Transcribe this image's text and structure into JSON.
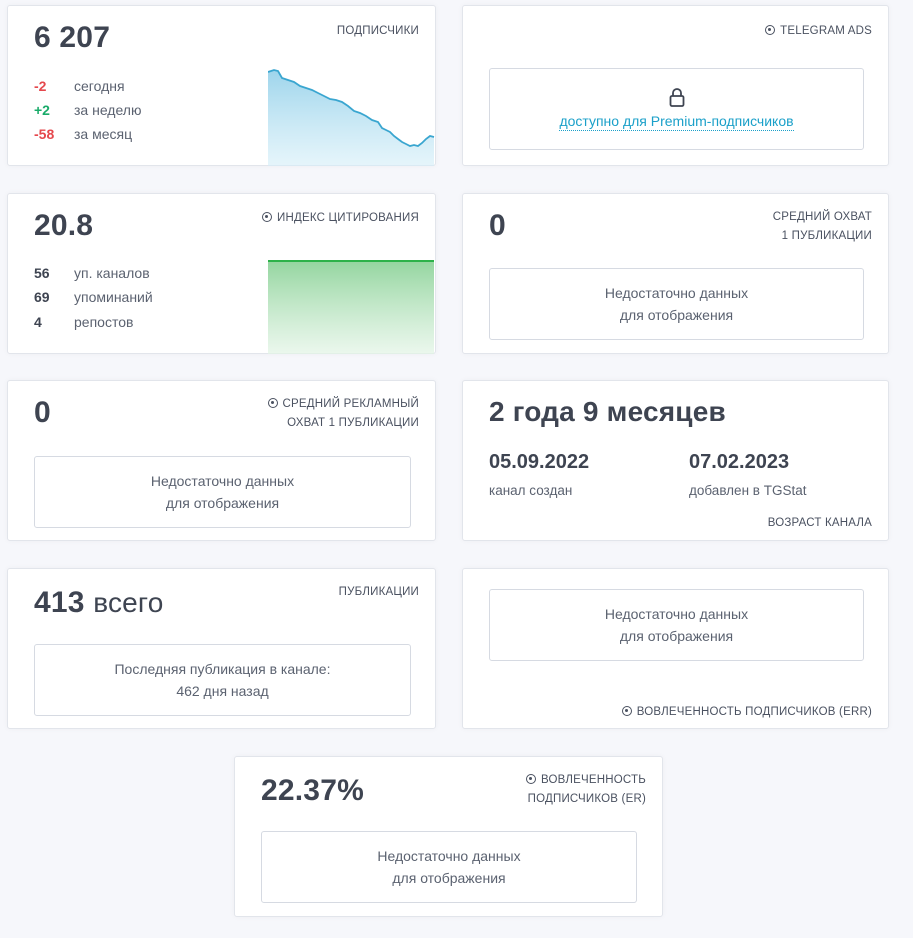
{
  "subscribers": {
    "value": "6 207",
    "title": "ПОДПИСЧИКИ",
    "rows": [
      {
        "num": "-2",
        "label": "сегодня"
      },
      {
        "num": "+2",
        "label": "за неделю"
      },
      {
        "num": "-58",
        "label": "за месяц"
      }
    ]
  },
  "telegram_ads": {
    "title": "TELEGRAM ADS",
    "link": "доступно для Premium-подписчиков"
  },
  "citation": {
    "value": "20.8",
    "title": "ИНДЕКС ЦИТИРОВАНИЯ",
    "rows": [
      {
        "num": "56",
        "label": "уп. каналов"
      },
      {
        "num": "69",
        "label": "упоминаний"
      },
      {
        "num": "4",
        "label": "репостов"
      }
    ]
  },
  "avg_reach": {
    "value": "0",
    "title_line1": "СРЕДНИЙ ОХВАТ",
    "title_line2": "1 ПУБЛИКАЦИИ",
    "empty_line1": "Недостаточно данных",
    "empty_line2": "для отображения"
  },
  "avg_ad_reach": {
    "value": "0",
    "title_line1": "СРЕДНИЙ РЕКЛАМНЫЙ",
    "title_line2": "ОХВАТ 1 ПУБЛИКАЦИИ",
    "empty_line1": "Недостаточно данных",
    "empty_line2": "для отображения"
  },
  "channel_age": {
    "value": "2 года 9 месяцев",
    "created_date": "05.09.2022",
    "created_label": "канал создан",
    "added_date": "07.02.2023",
    "added_label": "добавлен в TGStat",
    "title": "ВОЗРАСТ КАНАЛА"
  },
  "publications": {
    "value": "413",
    "unit": "всего",
    "title": "ПУБЛИКАЦИИ",
    "last_line1": "Последняя публикация в канале:",
    "last_line2": "462 дня назад"
  },
  "err": {
    "empty_line1": "Недостаточно данных",
    "empty_line2": "для отображения",
    "title": "ВОВЛЕЧЕННОСТЬ ПОДПИСЧИКОВ (ERR)"
  },
  "er": {
    "value": "22.37%",
    "title_line1": "ВОВЛЕЧЕННОСТЬ",
    "title_line2": "ПОДПИСЧИКОВ (ER)",
    "empty_line1": "Недостаточно данных",
    "empty_line2": "для отображения"
  },
  "colors": {
    "negative": "#e5484d",
    "positive": "#1aab6a",
    "subscribers_chart": "#3aa6d0",
    "citation_chart": "#2db24a",
    "link": "#1ba0c9"
  }
}
